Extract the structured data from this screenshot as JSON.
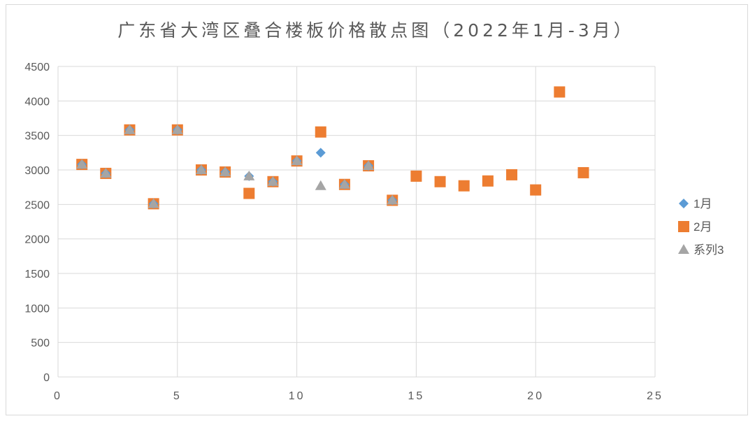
{
  "chart_data": {
    "type": "scatter",
    "title": "广东省大湾区叠合楼板价格散点图（2022年1月-3月）",
    "xlabel": "",
    "ylabel": "",
    "xlim": [
      0,
      25
    ],
    "ylim": [
      0,
      4500
    ],
    "x_ticks": [
      0,
      5,
      10,
      15,
      20,
      25
    ],
    "y_ticks": [
      0,
      500,
      1000,
      1500,
      2000,
      2500,
      3000,
      3500,
      4000,
      4500
    ],
    "grid": true,
    "legend_position": "right",
    "series": [
      {
        "name": "1月",
        "marker": "diamond",
        "color": "#5b9bd5",
        "points": [
          [
            1,
            3080
          ],
          [
            2,
            2950
          ],
          [
            3,
            3580
          ],
          [
            4,
            2510
          ],
          [
            5,
            3580
          ],
          [
            6,
            3000
          ],
          [
            7,
            2970
          ],
          [
            8,
            2910
          ],
          [
            9,
            2830
          ],
          [
            10,
            3130
          ],
          [
            11,
            3250
          ],
          [
            12,
            2790
          ],
          [
            13,
            3060
          ],
          [
            14,
            2560
          ]
        ]
      },
      {
        "name": "2月",
        "marker": "square",
        "color": "#ed7d31",
        "points": [
          [
            1,
            3080
          ],
          [
            2,
            2950
          ],
          [
            3,
            3580
          ],
          [
            4,
            2510
          ],
          [
            5,
            3580
          ],
          [
            6,
            3000
          ],
          [
            7,
            2970
          ],
          [
            8,
            2660
          ],
          [
            9,
            2830
          ],
          [
            10,
            3130
          ],
          [
            11,
            3550
          ],
          [
            12,
            2790
          ],
          [
            13,
            3060
          ],
          [
            14,
            2560
          ],
          [
            15,
            2910
          ],
          [
            16,
            2830
          ],
          [
            17,
            2770
          ],
          [
            18,
            2840
          ],
          [
            19,
            2930
          ],
          [
            20,
            2710
          ],
          [
            21,
            4130
          ],
          [
            22,
            2960
          ]
        ]
      },
      {
        "name": "系列3",
        "marker": "triangle",
        "color": "#a5a5a5",
        "points": [
          [
            1,
            3080
          ],
          [
            2,
            2950
          ],
          [
            3,
            3580
          ],
          [
            4,
            2510
          ],
          [
            5,
            3580
          ],
          [
            6,
            3000
          ],
          [
            7,
            2970
          ],
          [
            8,
            2910
          ],
          [
            9,
            2830
          ],
          [
            10,
            3130
          ],
          [
            11,
            2770
          ],
          [
            12,
            2790
          ],
          [
            13,
            3060
          ],
          [
            14,
            2560
          ]
        ]
      }
    ]
  }
}
